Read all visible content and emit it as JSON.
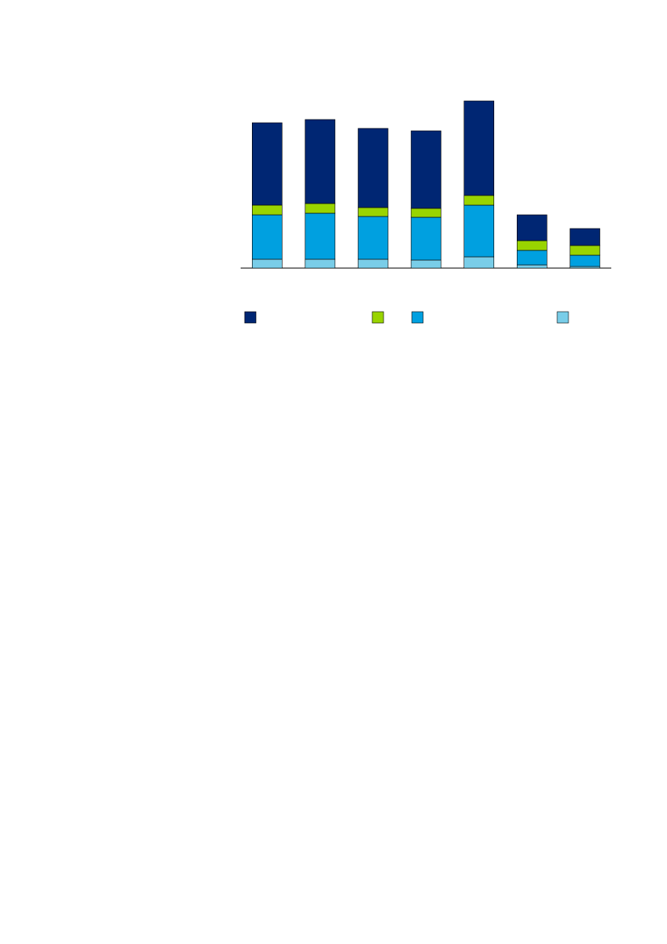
{
  "chart_data": {
    "type": "stacked_bar",
    "categories": [
      null,
      null,
      null,
      null,
      null,
      null,
      null
    ],
    "series": [
      {
        "color": "#79cde8",
        "values": [
          11,
          11,
          11,
          10,
          14,
          4,
          2
        ]
      },
      {
        "color": "#00a0e0",
        "values": [
          55,
          57,
          53,
          53,
          64,
          18,
          14
        ]
      },
      {
        "color": "#99d400",
        "values": [
          12,
          12,
          11,
          11,
          12,
          12,
          12
        ]
      },
      {
        "color": "#002673",
        "values": [
          102,
          104,
          98,
          96,
          117,
          32,
          21
        ]
      }
    ],
    "legend": "bottom"
  }
}
